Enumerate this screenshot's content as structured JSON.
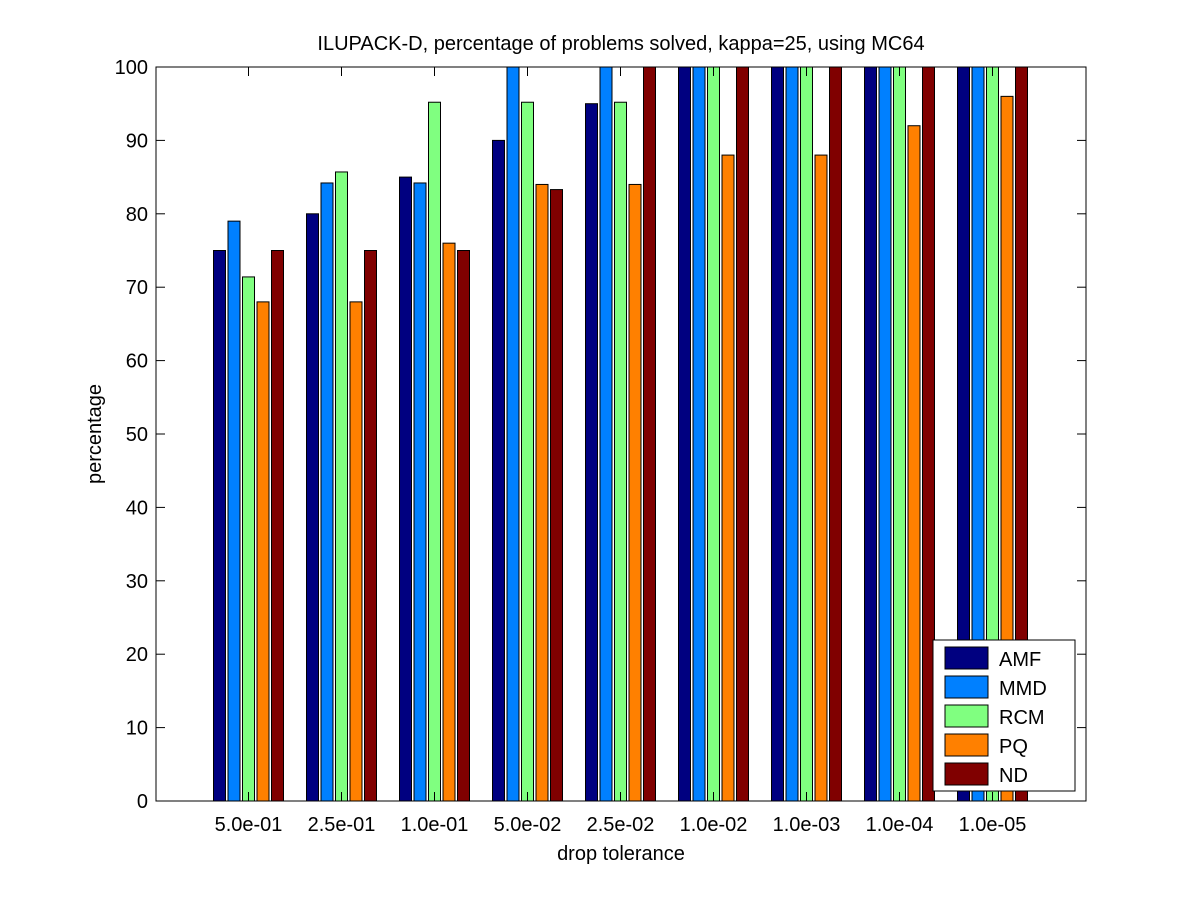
{
  "chart_data": {
    "type": "bar",
    "title": "ILUPACK-D, percentage of problems solved, kappa=25, using MC64",
    "xlabel": "drop tolerance",
    "ylabel": "percentage",
    "ylim": [
      0,
      100
    ],
    "yticks": [
      0,
      10,
      20,
      30,
      40,
      50,
      60,
      70,
      80,
      90,
      100
    ],
    "grid": false,
    "legend_position": "bottom-right",
    "categories": [
      "5.0e-01",
      "2.5e-01",
      "1.0e-01",
      "5.0e-02",
      "2.5e-02",
      "1.0e-02",
      "1.0e-03",
      "1.0e-04",
      "1.0e-05"
    ],
    "series": [
      {
        "name": "AMF",
        "color": "#000080",
        "values": [
          75,
          80,
          85,
          90,
          95,
          100,
          100,
          100,
          100
        ]
      },
      {
        "name": "MMD",
        "color": "#0080ff",
        "values": [
          79,
          84.2,
          84.2,
          100,
          100,
          100,
          100,
          100,
          100
        ]
      },
      {
        "name": "RCM",
        "color": "#80ff80",
        "values": [
          71.4,
          85.7,
          95.2,
          95.2,
          95.2,
          100,
          100,
          100,
          100
        ]
      },
      {
        "name": "PQ",
        "color": "#ff8000",
        "values": [
          68,
          68,
          76,
          84,
          84,
          88,
          88,
          92,
          96
        ]
      },
      {
        "name": "ND",
        "color": "#800000",
        "values": [
          75,
          75,
          75,
          83.3,
          100,
          100,
          100,
          100,
          100
        ]
      }
    ]
  }
}
